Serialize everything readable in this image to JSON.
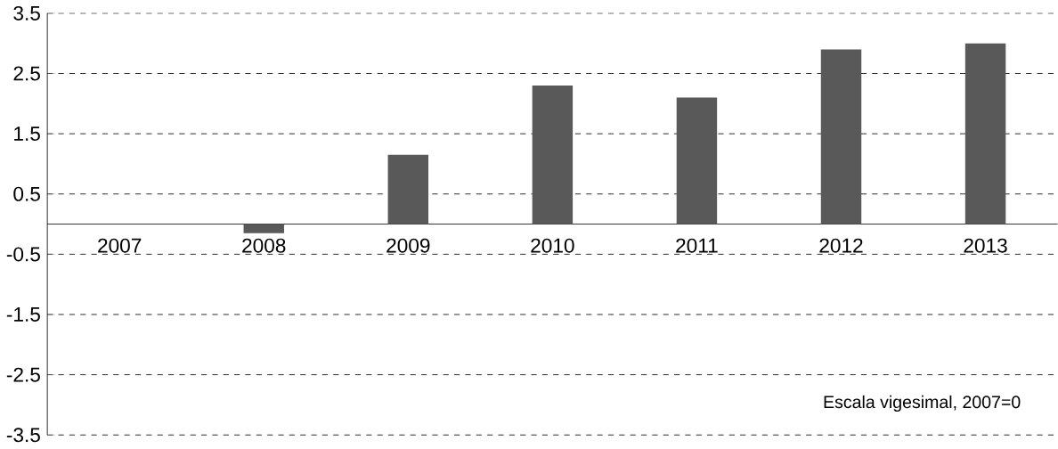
{
  "chart_data": {
    "type": "bar",
    "categories": [
      "2007",
      "2008",
      "2009",
      "2010",
      "2011",
      "2012",
      "2013"
    ],
    "values": [
      0,
      -0.15,
      1.15,
      2.3,
      2.1,
      2.9,
      3.0
    ],
    "color": "#595959",
    "ylim": [
      -3.5,
      3.5
    ],
    "yticks": [
      -3.5,
      -2.5,
      -1.5,
      -0.5,
      0.5,
      1.5,
      2.5,
      3.5
    ],
    "grid": "y",
    "annotations": [
      "Escala vigesimal, 2007=0"
    ]
  }
}
